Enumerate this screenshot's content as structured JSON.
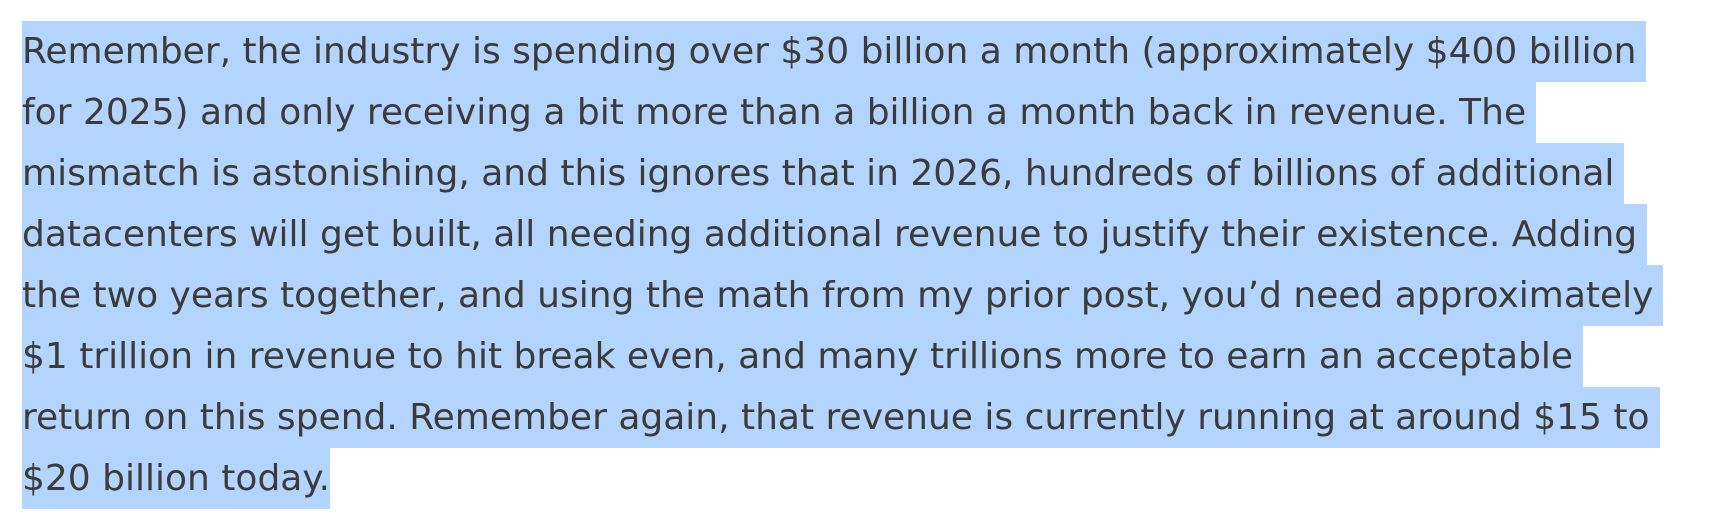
{
  "paragraph": {
    "lines": [
      "Remember, the industry is spending over $30 billion a month (approximately $400 billion",
      "for 2025) and only receiving a bit more than a billion a month back in revenue. The",
      "mismatch is astonishing, and this ignores that in 2026, hundreds of billions of additional",
      "datacenters will get built, all needing additional revenue to justify their existence. Adding",
      "the two years together, and using the math from my prior post, you’d need approximately",
      "$1 trillion in revenue to hit break even, and many trillions more to earn an acceptable",
      "return on this spend. Remember again, that revenue is currently running at around $15 to",
      "$20 billion today."
    ]
  },
  "colors": {
    "selection_highlight": "#b3d5fd",
    "text": "#3b3b3b",
    "background": "#ffffff"
  }
}
